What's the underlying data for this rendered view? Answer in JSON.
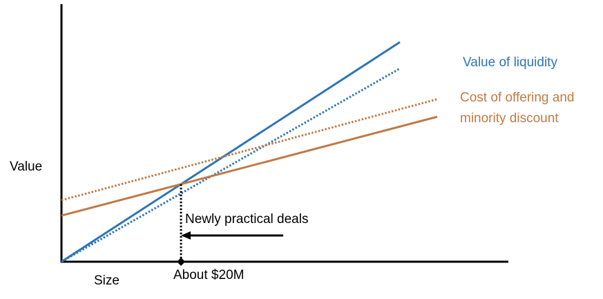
{
  "chart_data": {
    "type": "line",
    "xlabel": "Size",
    "ylabel": "Value",
    "x_marker_label": "About $20M",
    "annotation": "Newly practical deals",
    "grid": false,
    "legend": "inline labels at right end of lines",
    "series": [
      {
        "name": "Value of liquidity",
        "style": "solid",
        "color": "#2e75b6",
        "x": [
          0,
          1
        ],
        "y": [
          0,
          1
        ]
      },
      {
        "name": "Value of liquidity",
        "style": "dotted",
        "color": "#2e75b6",
        "x": [
          0,
          1
        ],
        "y": [
          0,
          0.88
        ]
      },
      {
        "name": "Cost of offering and minority discount",
        "style": "solid",
        "color": "#c07a45",
        "x": [
          0,
          1.11
        ],
        "y": [
          0.21,
          0.66
        ]
      },
      {
        "name": "Cost of offering and minority discount",
        "style": "dotted",
        "color": "#c07a45",
        "x": [
          0,
          1.11
        ],
        "y": [
          0.28,
          0.74
        ]
      }
    ],
    "series_labels": [
      {
        "text": "Value of liquidity",
        "color": "#2e75b6"
      },
      {
        "text": "Cost of offering and",
        "color": "#c07a45"
      },
      {
        "text": "minority discount",
        "color": "#c07a45"
      }
    ],
    "marker": {
      "x": 0.34,
      "style": "dotted-drop-line with diamond at x-axis"
    },
    "xlim": [
      0,
      1.3
    ],
    "ylim": [
      0,
      1.1
    ],
    "axis_color": "#000000",
    "arrow_color": "#000000"
  }
}
